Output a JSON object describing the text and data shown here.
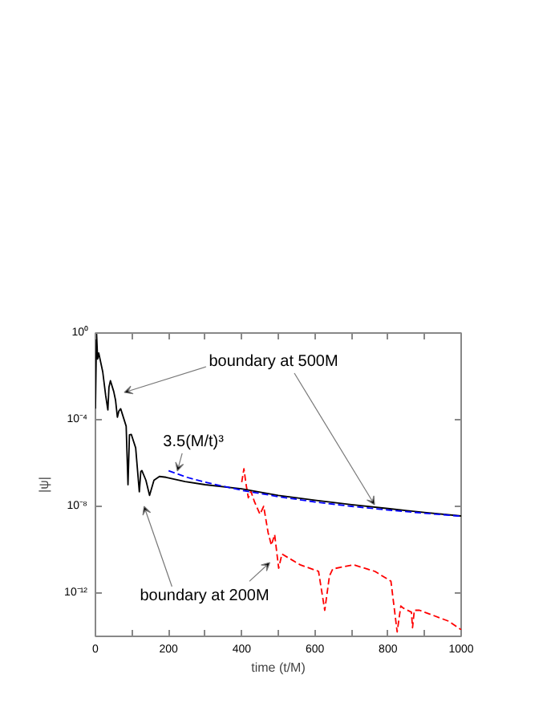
{
  "chart_data": {
    "type": "line",
    "xlabel": "time (t/M)",
    "ylabel": "|ψ|",
    "log": "y",
    "xlim": [
      0,
      1000
    ],
    "xticks": [
      0,
      {
        "value": 100,
        "label": null
      },
      200,
      {
        "value": 300,
        "label": null
      },
      400,
      {
        "value": 500,
        "label": null
      },
      600,
      {
        "value": 700,
        "label": null
      },
      800,
      {
        "value": 900,
        "label": null
      },
      1000
    ],
    "ylim": [
      1e-14,
      1
    ],
    "yticks": [
      {
        "value": 1e-12,
        "label": "10⁻¹²"
      },
      {
        "value": 1e-08,
        "label": "10⁻⁸"
      },
      {
        "value": 0.0001,
        "label": "10⁻⁴"
      },
      {
        "value": 1,
        "label": "10⁰"
      }
    ],
    "grid": false,
    "series": [
      {
        "color": "#ff0000",
        "line_style": "dashed",
        "x": [
          400,
          406,
          412,
          418,
          425,
          435,
          450,
          460,
          472,
          481,
          490,
          501,
          510,
          560,
          610,
          627,
          640,
          649,
          706,
          764,
          808,
          825,
          835,
          842,
          864,
          867,
          872,
          886,
          966,
          1000
        ],
        "values": [
          1.3e-07,
          5.4e-07,
          1e-07,
          2.5e-08,
          5e-08,
          1.6e-08,
          4.3e-09,
          1e-08,
          6.3e-10,
          1.6e-10,
          5e-10,
          1.4e-11,
          6.3e-11,
          2e-11,
          1e-11,
          1.6e-13,
          6.3e-12,
          1.3e-11,
          2e-11,
          1e-11,
          3.5e-12,
          1.6e-14,
          2.5e-13,
          2e-13,
          1.3e-13,
          2.5e-14,
          1.6e-13,
          1.6e-13,
          5e-14,
          2e-14
        ]
      },
      {
        "color": "#000000",
        "line_style": "solid",
        "x": [
          0,
          3,
          6,
          9,
          20,
          28,
          34,
          37,
          41,
          50,
          55,
          60,
          64,
          69,
          84,
          89,
          93,
          98,
          110,
          120,
          124,
          127,
          138,
          148,
          160,
          175,
          193,
          245,
          300,
          399,
          500,
          600,
          700,
          800,
          900,
          1000
        ],
        "values": [
          0.00032,
          1.0,
          0.063,
          0.12,
          0.016,
          0.0013,
          0.00028,
          0.0032,
          0.0063,
          0.002,
          0.00079,
          0.00013,
          0.00025,
          0.00032,
          5e-05,
          1e-07,
          2e-05,
          2.1e-05,
          5e-06,
          4.7e-08,
          4e-07,
          4.5e-07,
          1.6e-07,
          3.2e-08,
          1.6e-07,
          2.4e-07,
          2.2e-07,
          1.4e-07,
          1e-07,
          6.5e-08,
          3.2e-08,
          1.9e-08,
          1.2e-08,
          7.9e-09,
          5.2e-09,
          3.6e-09
        ]
      },
      {
        "color": "#0000ff",
        "line_style": "dashed",
        "x": [
          200,
          250,
          300,
          400,
          500,
          600,
          700,
          800,
          900,
          1000
        ],
        "values": [
          4.4e-07,
          2.2e-07,
          1.3e-07,
          5.5e-08,
          2.8e-08,
          1.6e-08,
          1e-08,
          6.8e-09,
          4.8e-09,
          3.5e-09
        ]
      }
    ],
    "annotations": [
      "boundary at 500M",
      {
        "text": "3.5(M/t)³",
        "x": 224,
        "y": 4.3e-07
      },
      "boundary at 200M"
    ]
  }
}
